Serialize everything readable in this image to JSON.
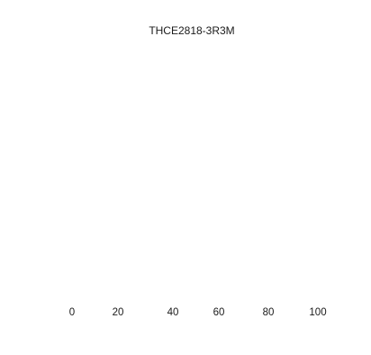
{
  "chart_data": {
    "type": "bar",
    "title": "THCE2818-3R3M",
    "xlabel": "",
    "ylabel": "",
    "x_ticks": [
      0,
      20,
      40,
      60,
      80,
      100
    ],
    "xlim": [
      0,
      100
    ],
    "categories": [],
    "series": [],
    "grid": false,
    "legend": "none"
  }
}
